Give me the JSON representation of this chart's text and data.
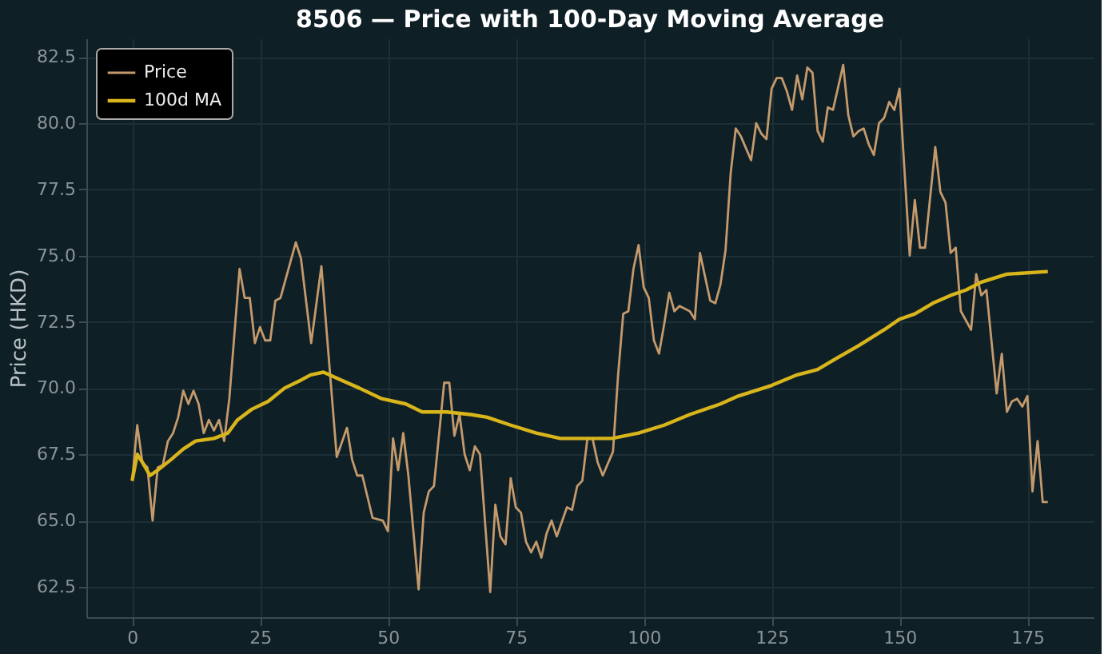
{
  "chart_data": {
    "type": "line",
    "title": "8506 — Price with 100-Day Moving Average",
    "ylabel": "Price (HKD)",
    "xlim": [
      -8.95,
      187.95
    ],
    "xticks": [
      0,
      25,
      50,
      75,
      100,
      125,
      150,
      175
    ],
    "ylim": [
      61.35,
      83.2
    ],
    "yticks": [
      {
        "value": 62.5,
        "label": "62.5"
      },
      {
        "value": 65,
        "label": "65.0"
      },
      {
        "value": 67.5,
        "label": "67.5"
      },
      {
        "value": 70,
        "label": "70.0"
      },
      {
        "value": 72.5,
        "label": "72.5"
      },
      {
        "value": 75,
        "label": "75.0"
      },
      {
        "value": 77.5,
        "label": "77.5"
      },
      {
        "value": 80,
        "label": "80.0"
      },
      {
        "value": 82.5,
        "label": "82.5"
      }
    ],
    "grid": true,
    "legend": "top left",
    "marker": "none",
    "line_style": "solid",
    "series": [
      {
        "name": "Price",
        "color": "#c49a6c",
        "x": [
          0,
          1,
          2,
          3,
          4,
          5,
          6,
          7,
          8,
          9,
          10,
          11,
          12,
          13,
          14,
          15,
          16,
          17,
          18,
          19,
          21,
          22,
          23,
          24,
          25,
          26,
          27,
          28,
          29,
          32,
          33,
          35,
          37,
          40,
          42,
          43,
          44,
          45,
          47,
          49,
          50,
          51,
          52,
          53,
          54,
          56,
          57,
          58,
          59,
          61,
          62,
          63,
          64,
          65,
          66,
          67,
          68,
          70,
          71,
          72,
          73,
          74,
          75,
          76,
          77,
          78,
          79,
          80,
          81,
          82,
          83,
          85,
          86,
          87,
          88,
          89,
          90,
          91,
          92,
          94,
          95,
          96,
          97,
          98,
          99,
          100,
          101,
          102,
          103,
          104,
          105,
          106,
          107,
          108,
          109,
          110,
          111,
          113,
          114,
          115,
          116,
          117,
          118,
          119,
          121,
          122,
          123,
          124,
          125,
          126,
          127,
          128,
          129,
          130,
          131,
          132,
          133,
          134,
          135,
          136,
          137,
          139,
          140,
          141,
          142,
          143,
          144,
          145,
          146,
          147,
          148,
          149,
          150,
          152,
          153,
          154,
          155,
          157,
          158,
          159,
          160,
          161,
          162,
          164,
          165,
          166,
          167,
          169,
          170,
          171,
          172,
          173,
          174,
          175,
          176,
          177,
          178,
          179
        ],
        "values": [
          66.5,
          68.6,
          67.2,
          67.0,
          65.0,
          67.0,
          67.1,
          68.0,
          68.3,
          68.9,
          69.9,
          69.4,
          69.9,
          69.4,
          68.3,
          68.8,
          68.4,
          68.8,
          68.0,
          69.6,
          74.5,
          73.4,
          73.4,
          71.7,
          72.3,
          71.8,
          71.8,
          73.3,
          73.4,
          75.5,
          74.9,
          71.7,
          74.6,
          67.4,
          68.5,
          67.3,
          66.7,
          66.7,
          65.1,
          65.0,
          64.6,
          68.1,
          66.9,
          68.3,
          66.7,
          62.4,
          65.3,
          66.1,
          66.3,
          70.2,
          70.2,
          68.2,
          69.0,
          67.5,
          66.9,
          67.8,
          67.5,
          62.3,
          65.6,
          64.4,
          64.1,
          66.6,
          65.5,
          65.3,
          64.2,
          63.8,
          64.2,
          63.6,
          64.5,
          65.0,
          64.4,
          65.5,
          65.4,
          66.3,
          66.5,
          68.1,
          68.1,
          67.2,
          66.7,
          67.6,
          70.5,
          72.8,
          72.9,
          74.5,
          75.4,
          73.8,
          73.4,
          71.8,
          71.3,
          72.4,
          73.6,
          72.9,
          73.1,
          73.0,
          72.9,
          72.6,
          75.1,
          73.3,
          73.2,
          73.9,
          75.2,
          78.1,
          79.8,
          79.5,
          78.6,
          80.0,
          79.6,
          79.4,
          81.3,
          81.7,
          81.7,
          81.2,
          80.5,
          81.8,
          80.9,
          82.1,
          81.9,
          79.7,
          79.3,
          80.6,
          80.5,
          82.2,
          80.3,
          79.5,
          79.7,
          79.8,
          79.2,
          78.8,
          80.0,
          80.2,
          80.8,
          80.5,
          81.3,
          75.0,
          77.1,
          75.3,
          75.3,
          79.1,
          77.4,
          77.0,
          75.1,
          75.3,
          72.9,
          72.2,
          74.3,
          73.5,
          73.7,
          69.8,
          71.3,
          69.1,
          69.5,
          69.6,
          69.3,
          69.7,
          66.1,
          68.0,
          65.7,
          65.7
        ]
      },
      {
        "name": "100d MA",
        "color": "#d9b51c",
        "x": [
          0,
          1,
          2,
          3.5,
          5,
          7.6,
          10,
          12.4,
          16,
          18.7,
          20.6,
          23.4,
          26.6,
          29.8,
          33,
          34.9,
          37.4,
          40.9,
          44.4,
          48.8,
          53.5,
          56.7,
          61.5,
          66.2,
          69.4,
          74,
          79,
          83.7,
          89,
          93.8,
          99,
          104,
          109,
          115,
          118.5,
          125,
          130,
          134,
          137.5,
          142,
          147,
          150,
          153,
          156.5,
          160,
          163,
          166,
          171,
          179
        ],
        "values": [
          66.5,
          67.5,
          67.2,
          66.7,
          66.9,
          67.3,
          67.7,
          68.0,
          68.1,
          68.3,
          68.8,
          69.2,
          69.5,
          70.0,
          70.3,
          70.5,
          70.6,
          70.3,
          70.0,
          69.6,
          69.4,
          69.1,
          69.1,
          69.0,
          68.9,
          68.6,
          68.3,
          68.1,
          68.1,
          68.1,
          68.3,
          68.6,
          69.0,
          69.4,
          69.7,
          70.1,
          70.5,
          70.7,
          71.1,
          71.6,
          72.2,
          72.6,
          72.8,
          73.2,
          73.5,
          73.7,
          74.0,
          74.3,
          74.4
        ]
      }
    ]
  }
}
